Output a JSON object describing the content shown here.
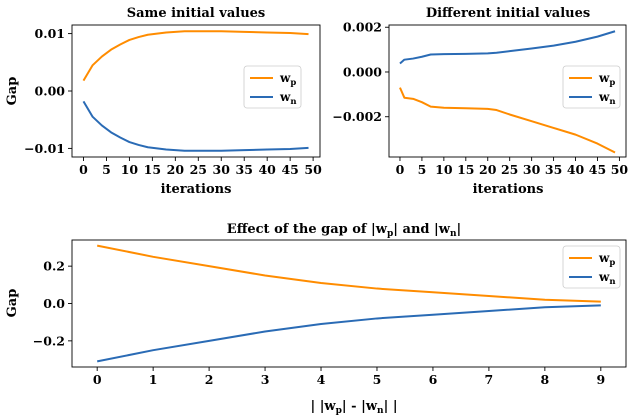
{
  "chart_data": [
    {
      "type": "line",
      "title": "Same initial values",
      "xlabel": "iterations",
      "ylabel": "Gap",
      "xlim": [
        -2.5,
        51.5
      ],
      "ylim": [
        -0.0115,
        0.0115
      ],
      "xticks": [
        0,
        5,
        10,
        15,
        20,
        25,
        30,
        35,
        40,
        45,
        50
      ],
      "xtick_labels": [
        "0",
        "5",
        "10",
        "15",
        "20",
        "25",
        "30",
        "35",
        "40",
        "45",
        "50"
      ],
      "yticks": [
        0.01,
        0.0,
        -0.01
      ],
      "ytick_labels": [
        "0.01",
        "0.00",
        "−0.01"
      ],
      "legend_position": "center-right",
      "series": [
        {
          "name": "w",
          "subscript": "p",
          "color": "#ff8c00",
          "x": [
            0,
            2,
            4,
            6,
            8,
            10,
            12,
            14,
            16,
            18,
            20,
            22,
            24,
            26,
            28,
            30,
            35,
            40,
            45,
            49
          ],
          "y": [
            0.0018,
            0.0045,
            0.006,
            0.0072,
            0.0081,
            0.0089,
            0.0094,
            0.0098,
            0.01,
            0.0102,
            0.0103,
            0.0104,
            0.0104,
            0.0104,
            0.0104,
            0.0104,
            0.0103,
            0.0102,
            0.0101,
            0.0099
          ]
        },
        {
          "name": "w",
          "subscript": "n",
          "color": "#2a6bb5",
          "x": [
            0,
            2,
            4,
            6,
            8,
            10,
            12,
            14,
            16,
            18,
            20,
            22,
            24,
            26,
            28,
            30,
            35,
            40,
            45,
            49
          ],
          "y": [
            -0.0018,
            -0.0045,
            -0.006,
            -0.0072,
            -0.0081,
            -0.0089,
            -0.0094,
            -0.0098,
            -0.01,
            -0.0102,
            -0.0103,
            -0.0104,
            -0.0104,
            -0.0104,
            -0.0104,
            -0.0104,
            -0.0103,
            -0.0102,
            -0.0101,
            -0.0099
          ]
        }
      ]
    },
    {
      "type": "line",
      "title": "Different initial values",
      "xlabel": "iterations",
      "ylabel": "",
      "xlim": [
        -2.5,
        51.5
      ],
      "ylim": [
        -0.0038,
        0.0021
      ],
      "xticks": [
        0,
        5,
        10,
        15,
        20,
        25,
        30,
        35,
        40,
        45,
        50
      ],
      "xtick_labels": [
        "0",
        "5",
        "10",
        "15",
        "20",
        "25",
        "30",
        "35",
        "40",
        "45",
        "50"
      ],
      "yticks": [
        0.002,
        0.0,
        -0.002
      ],
      "ytick_labels": [
        "0.002",
        "0.000",
        "−0.002"
      ],
      "legend_position": "center-right",
      "series": [
        {
          "name": "w",
          "subscript": "p",
          "color": "#ff8c00",
          "x": [
            0,
            1,
            3,
            5,
            7,
            10,
            15,
            20,
            22,
            25,
            30,
            35,
            40,
            45,
            49
          ],
          "y": [
            -0.0007,
            -0.00115,
            -0.0012,
            -0.00135,
            -0.00155,
            -0.0016,
            -0.00162,
            -0.00165,
            -0.0017,
            -0.0019,
            -0.0022,
            -0.0025,
            -0.0028,
            -0.0032,
            -0.0036
          ]
        },
        {
          "name": "w",
          "subscript": "n",
          "color": "#2a6bb5",
          "x": [
            0,
            1,
            3,
            5,
            7,
            10,
            15,
            20,
            22,
            25,
            30,
            35,
            40,
            45,
            49
          ],
          "y": [
            0.00038,
            0.00055,
            0.0006,
            0.00068,
            0.00078,
            0.0008,
            0.00081,
            0.00083,
            0.00086,
            0.00093,
            0.00105,
            0.00118,
            0.00135,
            0.00158,
            0.00182
          ]
        }
      ]
    },
    {
      "type": "line",
      "title_parts": [
        "Effect of the gap of |w",
        "p",
        "| and |w",
        "n",
        "|"
      ],
      "xlabel_parts": [
        "| |w",
        "p",
        "| - |w",
        "n",
        "| |"
      ],
      "ylabel": "Gap",
      "xlim": [
        -0.45,
        9.45
      ],
      "ylim": [
        -0.34,
        0.34
      ],
      "xticks": [
        0,
        1,
        2,
        3,
        4,
        5,
        6,
        7,
        8,
        9
      ],
      "xtick_labels": [
        "0",
        "1",
        "2",
        "3",
        "4",
        "5",
        "6",
        "7",
        "8",
        "9"
      ],
      "yticks": [
        0.2,
        0.0,
        -0.2
      ],
      "ytick_labels": [
        "0.2",
        "0.0",
        "−0.2"
      ],
      "legend_position": "top-right",
      "series": [
        {
          "name": "w",
          "subscript": "p",
          "color": "#ff8c00",
          "x": [
            0,
            1,
            2,
            3,
            4,
            5,
            6,
            7,
            8,
            9
          ],
          "y": [
            0.31,
            0.25,
            0.2,
            0.15,
            0.11,
            0.08,
            0.06,
            0.04,
            0.02,
            0.01
          ]
        },
        {
          "name": "w",
          "subscript": "n",
          "color": "#2a6bb5",
          "x": [
            0,
            1,
            2,
            3,
            4,
            5,
            6,
            7,
            8,
            9
          ],
          "y": [
            -0.31,
            -0.25,
            -0.2,
            -0.15,
            -0.11,
            -0.08,
            -0.06,
            -0.04,
            -0.02,
            -0.01
          ]
        }
      ]
    }
  ]
}
